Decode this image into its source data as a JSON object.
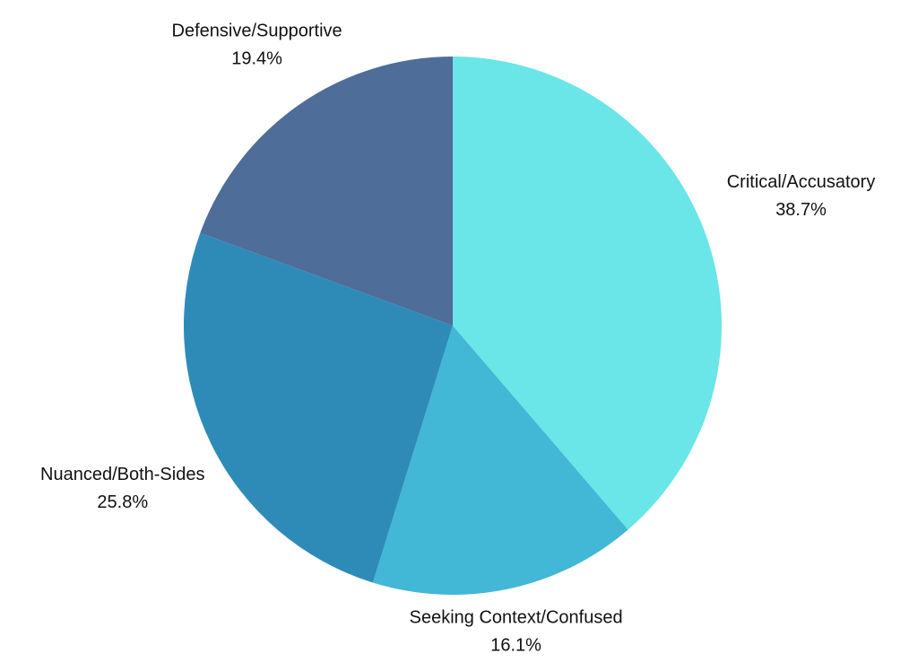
{
  "chart_data": {
    "type": "pie",
    "categories": [
      "Critical/Accusatory",
      "Seeking Context/Confused",
      "Nuanced/Both-Sides",
      "Defensive/Supportive"
    ],
    "values": [
      38.7,
      16.1,
      25.8,
      19.4
    ],
    "value_labels": [
      "38.7%",
      "16.1%",
      "25.8%",
      "19.4%"
    ],
    "colors": [
      "#6ae5e8",
      "#42b7d6",
      "#2e8bb8",
      "#4e6d98"
    ]
  }
}
